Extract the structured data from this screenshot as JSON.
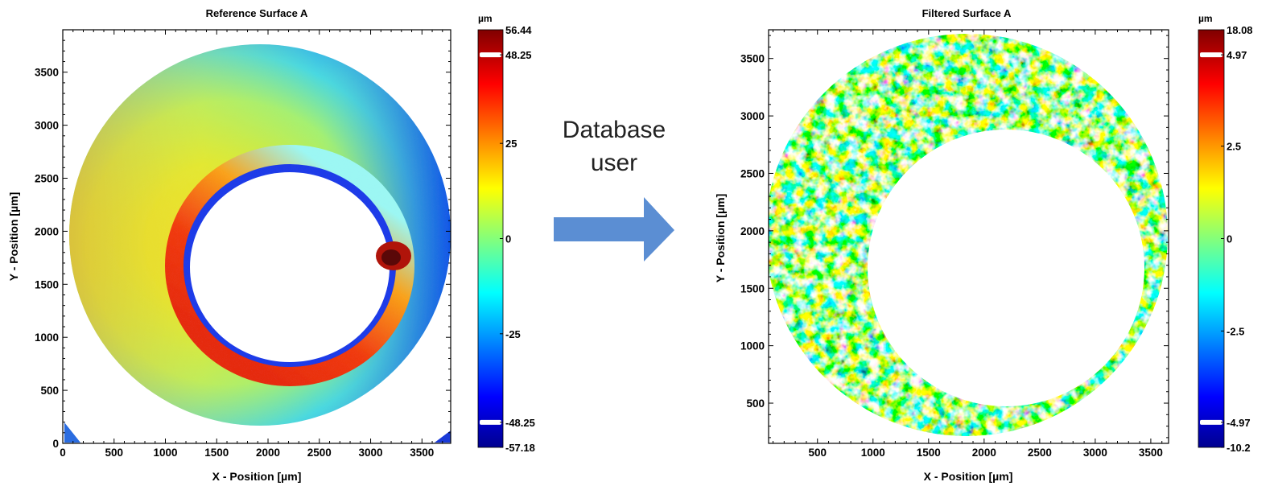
{
  "arrow": {
    "line1": "Database",
    "line2": "user",
    "color": "#5B8ED3"
  },
  "colormap": "jet",
  "chart_data": [
    {
      "type": "heatmap",
      "title": "Reference Surface A",
      "xlabel": "X - Position [µm]",
      "ylabel": "Y - Position [µm]",
      "xlim": [
        0,
        3780
      ],
      "ylim": [
        0,
        3900
      ],
      "xticks": [
        0,
        500,
        1000,
        1500,
        2000,
        2500,
        3000,
        3500
      ],
      "yticks": [
        0,
        500,
        1000,
        1500,
        2000,
        2500,
        3000,
        3500
      ],
      "colorbar": {
        "unit": "µm",
        "min": -57.18,
        "max": 56.44,
        "ticks": [
          56.44,
          48.25,
          25,
          0,
          -25,
          -48.25,
          -57.18
        ],
        "tick_labels": [
          "56.44",
          "48.25",
          "25",
          "0",
          "-25",
          "-48.25",
          "-57.18"
        ],
        "clip_marks": [
          48.25,
          -48.25
        ]
      }
    },
    {
      "type": "heatmap",
      "title": "Filtered Surface A",
      "xlabel": "X - Position [µm]",
      "ylabel": "Y - Position [µm]",
      "xlim": [
        60,
        3660
      ],
      "ylim": [
        150,
        3750
      ],
      "xticks": [
        500,
        1000,
        1500,
        2000,
        2500,
        3000,
        3500
      ],
      "yticks": [
        500,
        1000,
        1500,
        2000,
        2500,
        3000,
        3500
      ],
      "colorbar": {
        "unit": "µm",
        "min": -10.2,
        "max": 18.08,
        "ticks": [
          18.08,
          4.97,
          2.5,
          0,
          -2.5,
          -4.97,
          -10.2
        ],
        "tick_labels": [
          "18.08",
          "4.97",
          "2.5",
          "0",
          "-2.5",
          "-4.97",
          "-10.2"
        ],
        "clip_marks": [
          4.97,
          -4.97
        ]
      }
    }
  ]
}
